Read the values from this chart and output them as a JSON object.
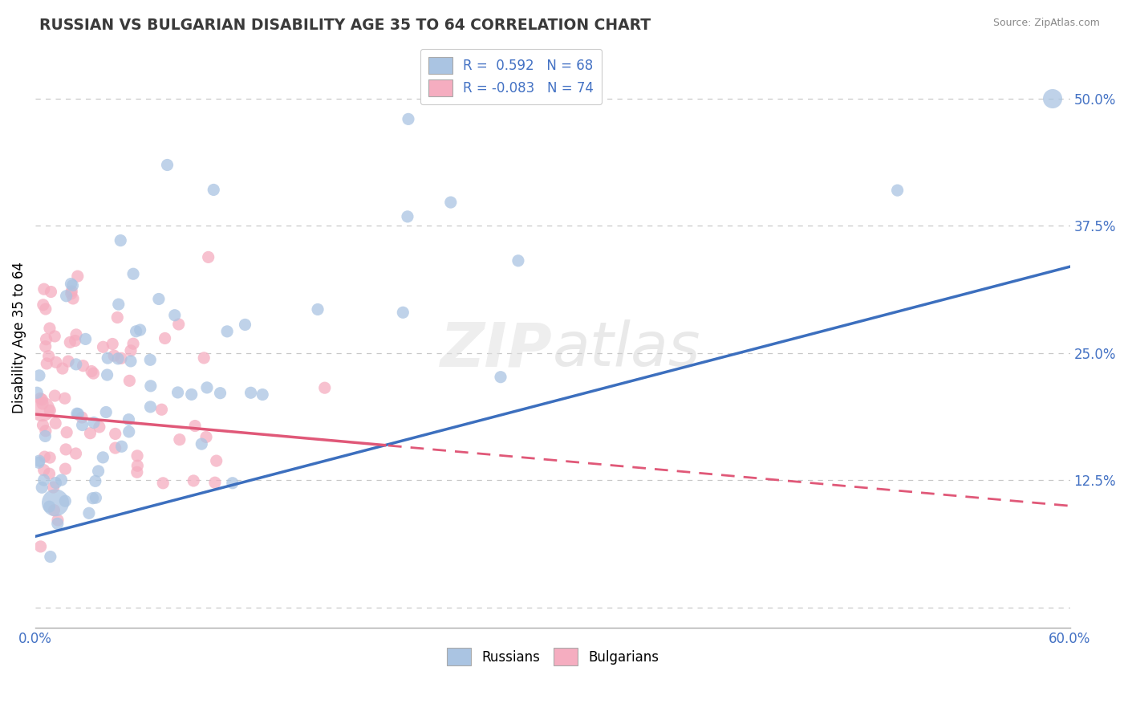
{
  "title": "RUSSIAN VS BULGARIAN DISABILITY AGE 35 TO 64 CORRELATION CHART",
  "source": "Source: ZipAtlas.com",
  "ylabel": "Disability Age 35 to 64",
  "xlim": [
    0.0,
    0.6
  ],
  "ylim": [
    -0.02,
    0.55
  ],
  "yticks": [
    0.0,
    0.125,
    0.25,
    0.375,
    0.5
  ],
  "russian_R": 0.592,
  "russian_N": 68,
  "bulgarian_R": -0.083,
  "bulgarian_N": 74,
  "russian_color": "#aac4e2",
  "bulgarian_color": "#f5adc0",
  "russian_line_color": "#3c6fbe",
  "bulgarian_line_color": "#e05878",
  "background_color": "#ffffff",
  "grid_color": "#c8c8c8",
  "title_color": "#3a3a3a",
  "axis_color": "#4472c4",
  "watermark": "ZIPatlas",
  "legend_russian_label": "Russians",
  "legend_bulgarian_label": "Bulgarians"
}
